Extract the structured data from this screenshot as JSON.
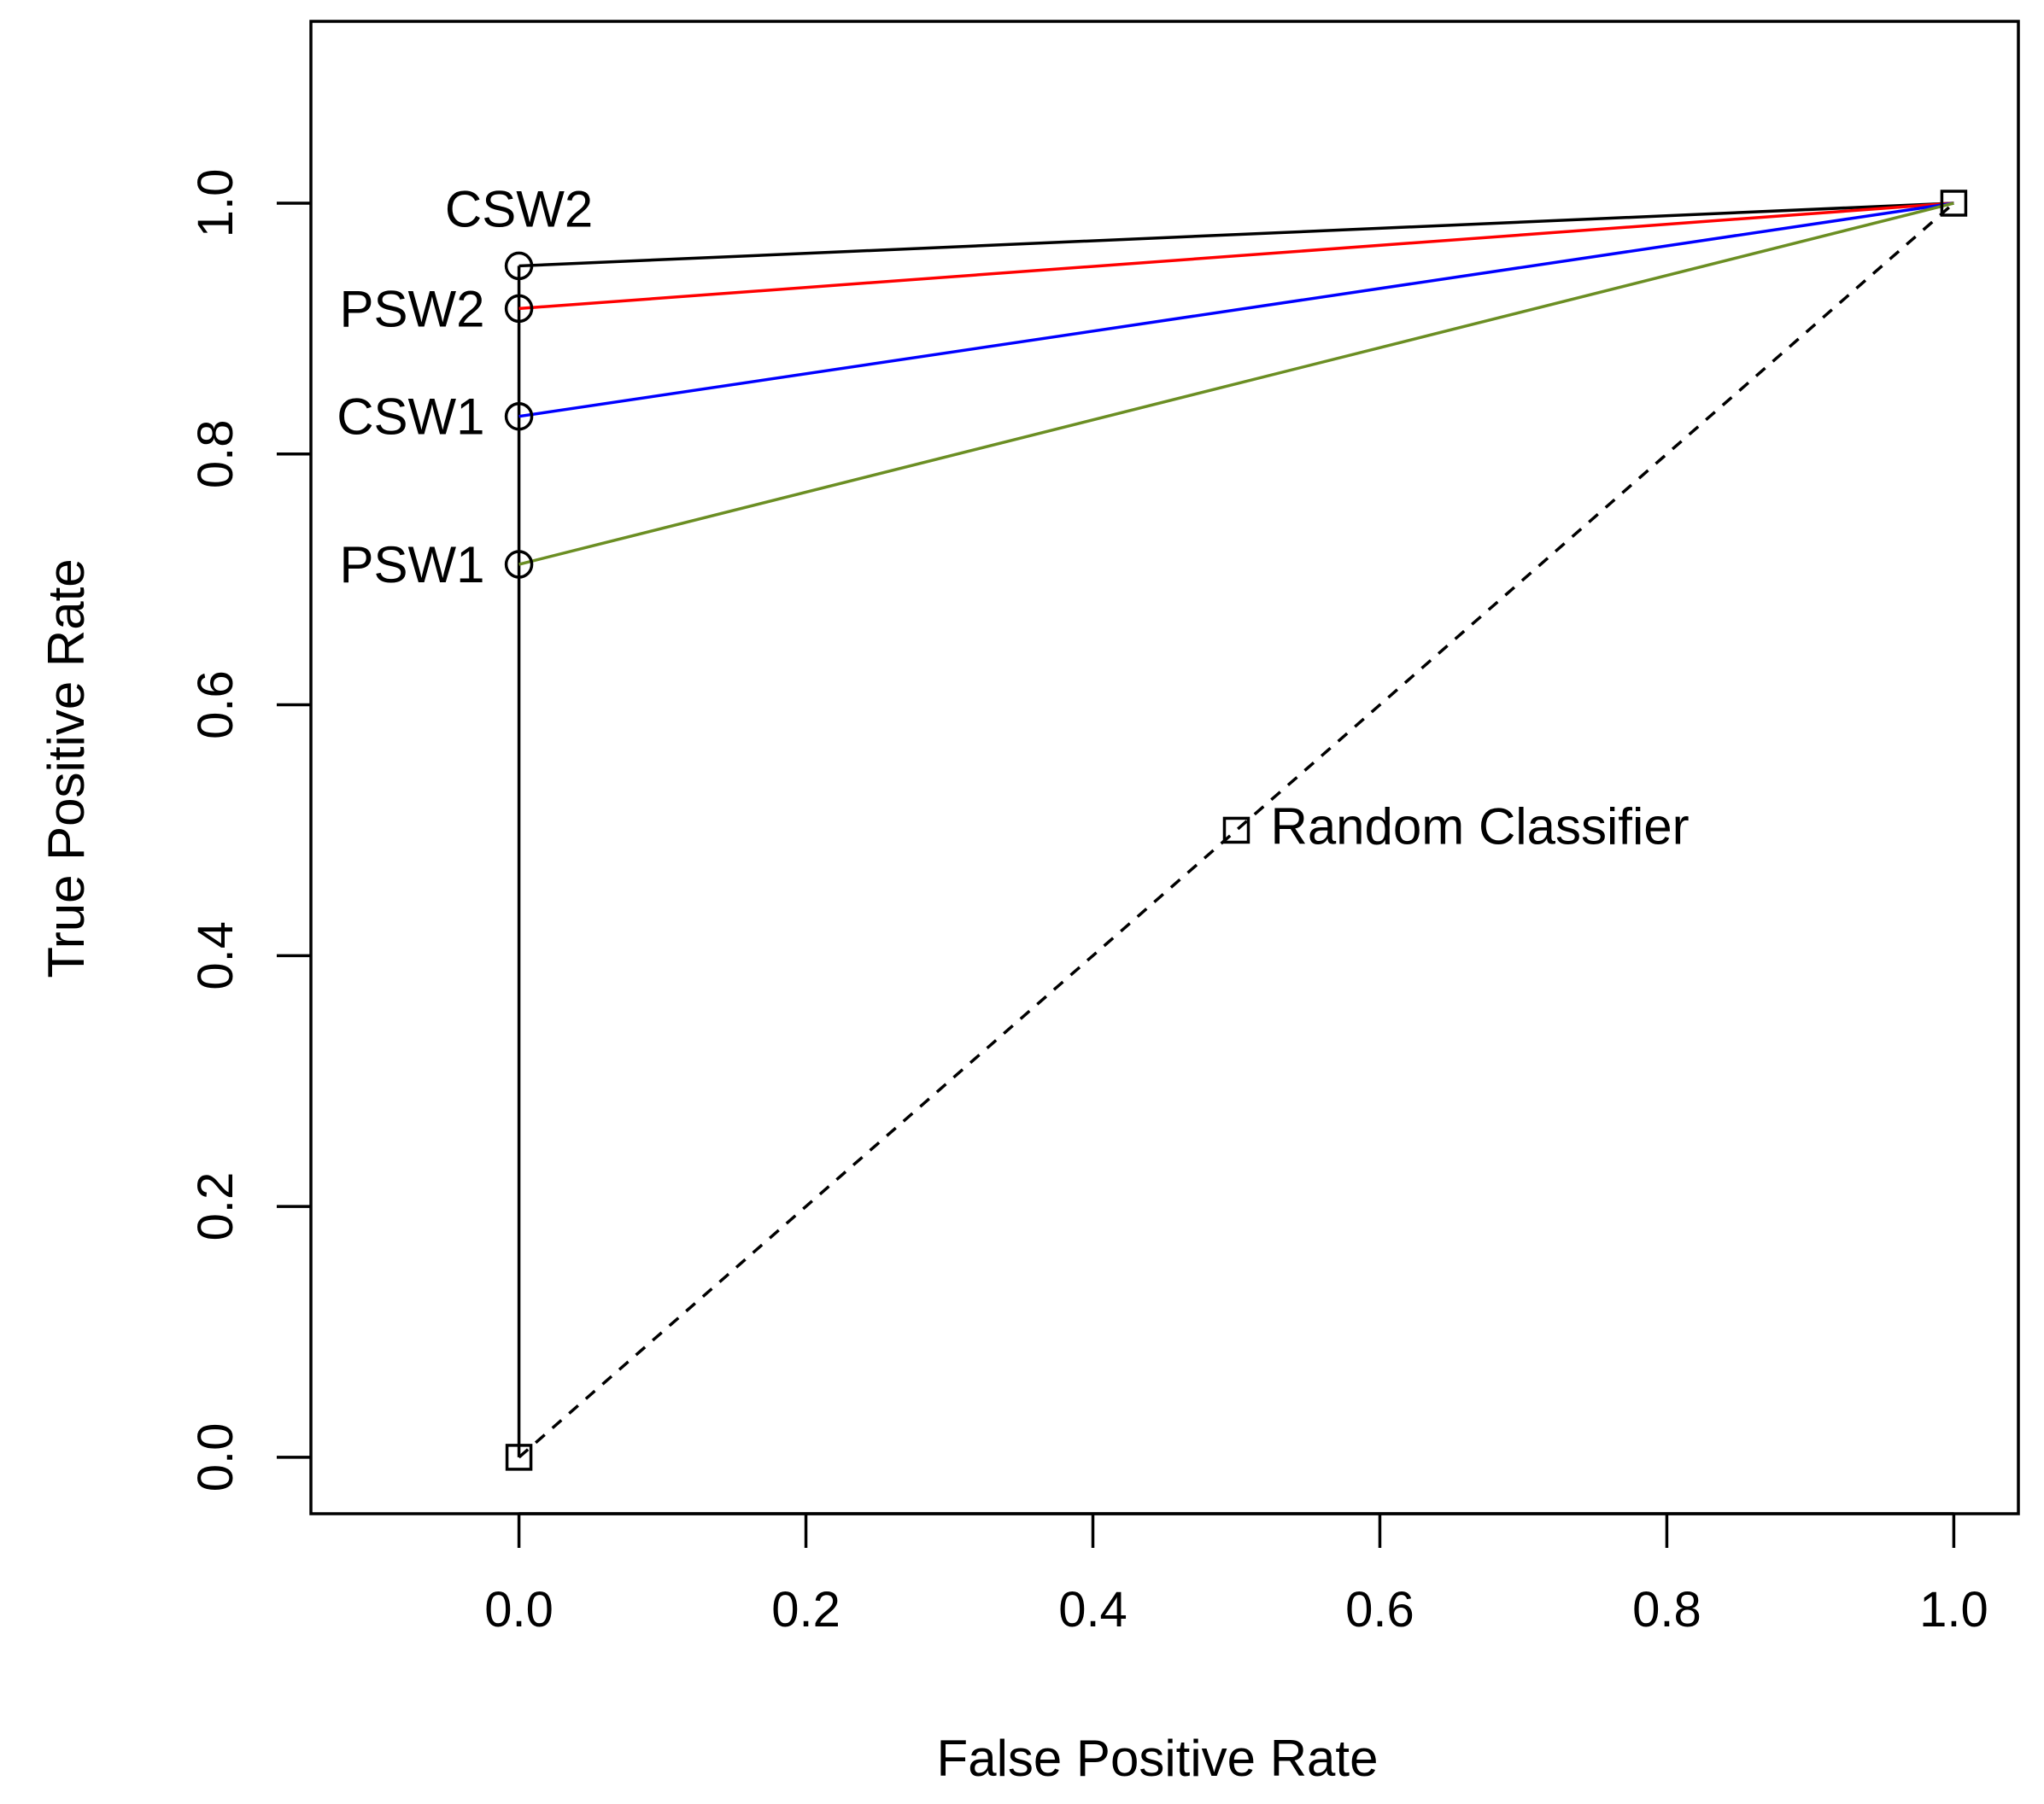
{
  "chart_data": {
    "type": "line",
    "title": "",
    "xlabel": "False Positive Rate",
    "ylabel": "True Positive Rate",
    "xlim": [
      -0.145,
      1.045
    ],
    "ylim": [
      -0.045,
      1.145
    ],
    "xticks": [
      0.0,
      0.2,
      0.4,
      0.6,
      0.8,
      1.0
    ],
    "yticks": [
      0.0,
      0.2,
      0.4,
      0.6,
      0.8,
      1.0
    ],
    "xtick_labels": [
      "0.0",
      "0.2",
      "0.4",
      "0.6",
      "0.8",
      "1.0"
    ],
    "ytick_labels": [
      "0.0",
      "0.2",
      "0.4",
      "0.6",
      "0.8",
      "1.0"
    ],
    "grid": false,
    "series": [
      {
        "name": "CSW2",
        "color": "#000000",
        "x": [
          0.0,
          1.0
        ],
        "y": [
          0.95,
          1.0
        ]
      },
      {
        "name": "PSW2",
        "color": "#ff0000",
        "x": [
          0.0,
          1.0
        ],
        "y": [
          0.916,
          1.0
        ]
      },
      {
        "name": "CSW1",
        "color": "#0000ff",
        "x": [
          0.0,
          1.0
        ],
        "y": [
          0.83,
          1.0
        ]
      },
      {
        "name": "PSW1",
        "color": "#6b8e23",
        "x": [
          0.0,
          1.0
        ],
        "y": [
          0.712,
          1.0
        ]
      }
    ],
    "vertical_line": {
      "color": "#000000",
      "x": [
        0.0,
        0.0
      ],
      "y": [
        0.0,
        0.95
      ]
    },
    "random_classifier": {
      "label": "Random Classifier",
      "color": "#000000",
      "x": [
        0.0,
        1.0
      ],
      "y": [
        0.0,
        1.0
      ],
      "square_points": [
        [
          0.0,
          0.0
        ],
        [
          0.5,
          0.5
        ],
        [
          1.0,
          1.0
        ]
      ]
    },
    "circle_points": [
      {
        "label": "CSW2",
        "x": 0.0,
        "y": 0.95,
        "label_position": "above"
      },
      {
        "label": "PSW2",
        "x": 0.0,
        "y": 0.916,
        "label_position": "left"
      },
      {
        "label": "CSW1",
        "x": 0.0,
        "y": 0.83,
        "label_position": "left"
      },
      {
        "label": "PSW1",
        "x": 0.0,
        "y": 0.712,
        "label_position": "left"
      }
    ]
  }
}
